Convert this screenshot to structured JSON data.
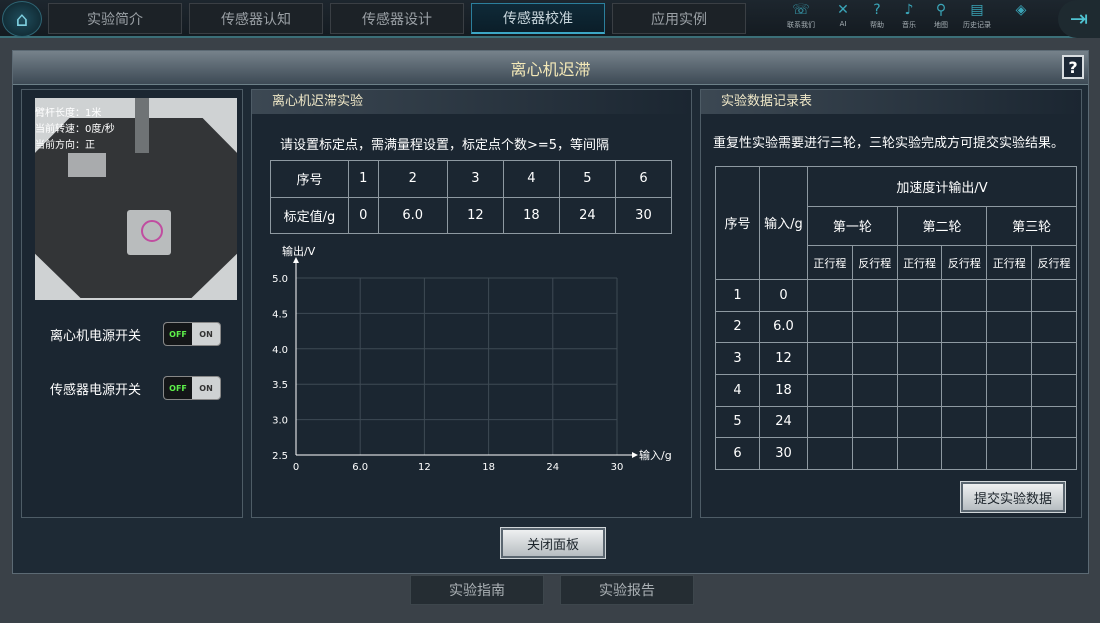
{
  "nav": {
    "tabs": [
      "实验简介",
      "传感器认知",
      "传感器设计",
      "传感器校准",
      "应用实例"
    ],
    "active": 3,
    "icons": [
      {
        "name": "phone-icon",
        "glyph": "☏",
        "label": "联系我们"
      },
      {
        "name": "ai-icon",
        "glyph": "✕",
        "label": "AI"
      },
      {
        "name": "help-icon",
        "glyph": "?",
        "label": "帮助"
      },
      {
        "name": "music-icon",
        "glyph": "♪",
        "label": "音乐"
      },
      {
        "name": "map-icon",
        "glyph": "⚲",
        "label": "地图"
      },
      {
        "name": "history-icon",
        "glyph": "▤",
        "label": "历史记录"
      },
      {
        "name": "knowledge-icon",
        "glyph": "◈",
        "label": ""
      }
    ]
  },
  "panel": {
    "title": "离心机迟滞",
    "help": "?",
    "close": "关闭面板"
  },
  "left": {
    "overlay": [
      "臂杆长度：1米",
      "当前转速：0度/秒",
      "当前方向：正"
    ],
    "switches": [
      {
        "label": "离心机电源开关",
        "off": "OFF",
        "on": "ON"
      },
      {
        "label": "传感器电源开关",
        "off": "OFF",
        "on": "ON"
      }
    ]
  },
  "middle": {
    "title": "离心机迟滞实验",
    "instruction": "请设置标定点，需满量程设置，标定点个数>=5，等间隔",
    "table": {
      "row1_label": "序号",
      "row2_label": "标定值/g",
      "index": [
        "1",
        "2",
        "3",
        "4",
        "5",
        "6"
      ],
      "values": [
        "0",
        "6.0",
        "12",
        "18",
        "24",
        "30"
      ]
    }
  },
  "chart_data": {
    "type": "line",
    "xlabel": "输入/g",
    "ylabel": "输出/V",
    "xlim": [
      0,
      30
    ],
    "ylim": [
      2.5,
      5.0
    ],
    "xticks": [
      "0",
      "6.0",
      "12",
      "18",
      "24",
      "30"
    ],
    "yticks": [
      "2.5",
      "3.0",
      "3.5",
      "4.0",
      "4.5",
      "5.0"
    ],
    "grid": true,
    "series": []
  },
  "right": {
    "title": "实验数据记录表",
    "note": "重复性实验需要进行三轮，三轮实验完成方可提交实验结果。",
    "table": {
      "col_index": "序号",
      "col_input": "输入/g",
      "group": "加速度计输出/V",
      "rounds": [
        "第一轮",
        "第二轮",
        "第三轮"
      ],
      "directions": [
        "正行程",
        "反行程"
      ],
      "rows": [
        [
          "1",
          "0"
        ],
        [
          "2",
          "6.0"
        ],
        [
          "3",
          "12"
        ],
        [
          "4",
          "18"
        ],
        [
          "5",
          "24"
        ],
        [
          "6",
          "30"
        ]
      ]
    },
    "submit": "提交实验数据"
  },
  "bottom": [
    "实验指南",
    "实验报告"
  ]
}
